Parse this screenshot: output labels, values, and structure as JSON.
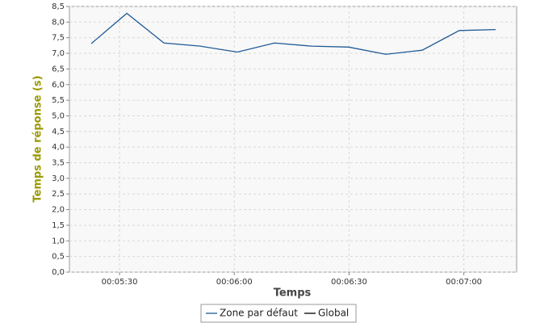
{
  "chart_data": {
    "type": "line",
    "x_label": "Temps",
    "y_label": "Temps de réponse (s)",
    "x": [
      322.6,
      331.9,
      341.6,
      351.1,
      360.8,
      370.5,
      380.2,
      389.9,
      399.6,
      409.1,
      418.8,
      428.3
    ],
    "series": [
      {
        "name": "Zone par défaut",
        "color": "#1f5a96",
        "values": [
          7.31,
          8.28,
          7.33,
          7.23,
          7.04,
          7.33,
          7.23,
          7.2,
          6.97,
          7.1,
          7.73,
          7.76
        ]
      }
    ],
    "legend": [
      {
        "name": "Zone par défaut",
        "color": "#1f5a96"
      },
      {
        "name": "Global",
        "color": "#000000"
      }
    ],
    "xlim": [
      316.9,
      433.8
    ],
    "xticks": [
      {
        "value": 330,
        "label": "00:05:30"
      },
      {
        "value": 360,
        "label": "00:06:00"
      },
      {
        "value": 390,
        "label": "00:06:30"
      },
      {
        "value": 420,
        "label": "00:07:00"
      }
    ],
    "ylim": [
      0,
      8.5
    ],
    "yticks": [
      {
        "value": 0,
        "label": "0,0"
      },
      {
        "value": 0.5,
        "label": "0,5"
      },
      {
        "value": 1,
        "label": "1,0"
      },
      {
        "value": 1.5,
        "label": "1,5"
      },
      {
        "value": 2,
        "label": "2,0"
      },
      {
        "value": 2.5,
        "label": "2,5"
      },
      {
        "value": 3,
        "label": "3,0"
      },
      {
        "value": 3.5,
        "label": "3,5"
      },
      {
        "value": 4,
        "label": "4,0"
      },
      {
        "value": 4.5,
        "label": "4,5"
      },
      {
        "value": 5,
        "label": "5,0"
      },
      {
        "value": 5.5,
        "label": "5,5"
      },
      {
        "value": 6,
        "label": "6,0"
      },
      {
        "value": 6.5,
        "label": "6,5"
      },
      {
        "value": 7,
        "label": "7,0"
      },
      {
        "value": 7.5,
        "label": "7,5"
      },
      {
        "value": 8,
        "label": "8,0"
      },
      {
        "value": 8.5,
        "label": "8,5"
      }
    ],
    "grid": true
  }
}
